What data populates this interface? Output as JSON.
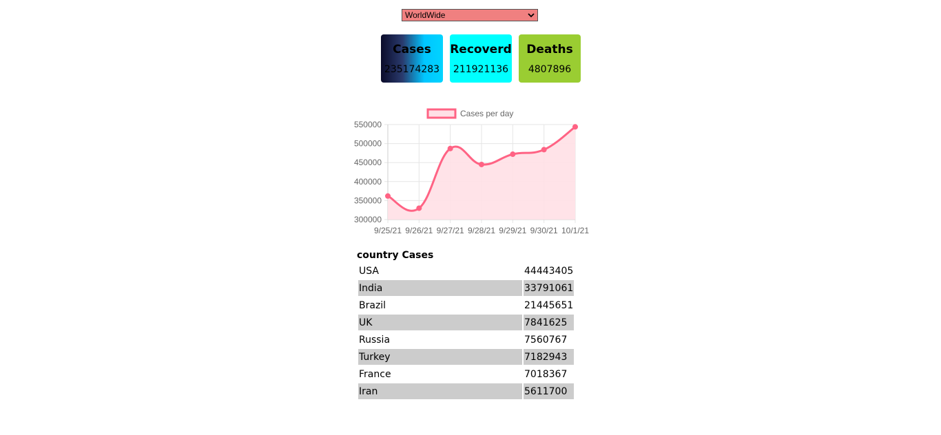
{
  "region_select": {
    "value": "WorldWide",
    "color": "#f08080"
  },
  "cards": [
    {
      "key": "cases",
      "title": "Cases",
      "value": "235174283"
    },
    {
      "key": "recovered",
      "title": "Recoverd",
      "value": "211921136",
      "color": "#00ffff"
    },
    {
      "key": "deaths",
      "title": "Deaths",
      "value": "4807896",
      "color": "#9acd32"
    }
  ],
  "chart_data": {
    "type": "line",
    "x": [
      "9/25/21",
      "9/26/21",
      "9/27/21",
      "9/28/21",
      "9/29/21",
      "9/30/21",
      "10/1/21"
    ],
    "series": [
      {
        "name": "Cases per day",
        "values": [
          362000,
          330000,
          487000,
          445000,
          472000,
          484000,
          544000
        ],
        "color": "#ff6384",
        "fill": "#ffe0e6"
      }
    ],
    "ylim": [
      300000,
      550000
    ],
    "yticks": [
      "550000",
      "500000",
      "450000",
      "400000",
      "350000",
      "300000"
    ],
    "legend": "top",
    "grid": true
  },
  "table": {
    "heading": "country Cases",
    "rows": [
      {
        "country": "USA",
        "cases": "44443405"
      },
      {
        "country": "India",
        "cases": "33791061"
      },
      {
        "country": "Brazil",
        "cases": "21445651"
      },
      {
        "country": "UK",
        "cases": "7841625"
      },
      {
        "country": "Russia",
        "cases": "7560767"
      },
      {
        "country": "Turkey",
        "cases": "7182943"
      },
      {
        "country": "France",
        "cases": "7018367"
      },
      {
        "country": "Iran",
        "cases": "5611700"
      }
    ]
  }
}
